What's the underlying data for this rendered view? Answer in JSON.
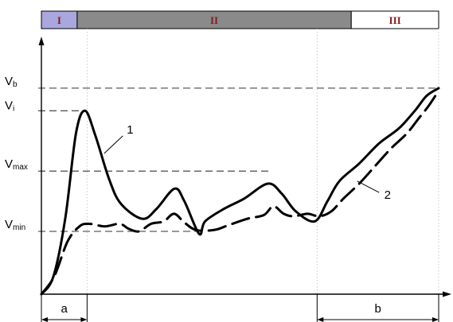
{
  "chart_data": {
    "type": "line",
    "x_range": [
      0,
      100
    ],
    "y_range": [
      0,
      100
    ],
    "y_levels": [
      {
        "id": "vmin",
        "main": "V",
        "sub": "min",
        "value": 25
      },
      {
        "id": "vmax",
        "main": "V",
        "sub": "max",
        "value": 49
      },
      {
        "id": "vi",
        "main": "V",
        "sub": "i",
        "value": 73
      },
      {
        "id": "vb",
        "main": "V",
        "sub": "b",
        "value": 82
      }
    ],
    "stages": [
      {
        "label": "I",
        "start": 0,
        "end": 9,
        "color": "#aaa6de"
      },
      {
        "label": "II",
        "start": 9,
        "end": 78,
        "color": "#8a8a8a"
      },
      {
        "label": "III",
        "start": 78,
        "end": 100,
        "color": "#ffffff"
      }
    ],
    "intervals": [
      {
        "label": "a",
        "start": 0,
        "end": 11.5
      },
      {
        "label": "b",
        "start": 69.4,
        "end": 100
      }
    ],
    "series": [
      {
        "name": "1",
        "style": "solid",
        "points": [
          [
            0,
            0
          ],
          [
            3,
            7
          ],
          [
            6,
            30
          ],
          [
            8.7,
            64
          ],
          [
            11,
            73
          ],
          [
            13.6,
            63
          ],
          [
            17,
            46
          ],
          [
            20,
            36
          ],
          [
            25.4,
            30
          ],
          [
            29,
            34
          ],
          [
            33.5,
            42
          ],
          [
            36,
            37
          ],
          [
            39.7,
            24
          ],
          [
            41.2,
            29
          ],
          [
            46,
            34
          ],
          [
            51,
            38
          ],
          [
            57,
            44
          ],
          [
            60.5,
            40
          ],
          [
            64,
            33
          ],
          [
            68.8,
            29
          ],
          [
            72,
            37
          ],
          [
            75,
            45
          ],
          [
            80,
            52
          ],
          [
            85,
            60
          ],
          [
            90,
            66
          ],
          [
            94,
            73
          ],
          [
            97,
            79
          ],
          [
            100,
            82
          ]
        ]
      },
      {
        "name": "2",
        "style": "dashed",
        "points": [
          [
            0,
            0
          ],
          [
            3.2,
            7
          ],
          [
            6.6,
            21
          ],
          [
            9.6,
            27
          ],
          [
            12,
            28
          ],
          [
            16,
            27
          ],
          [
            19.7,
            28
          ],
          [
            22,
            26
          ],
          [
            24.6,
            25
          ],
          [
            27.6,
            28
          ],
          [
            30.8,
            29
          ],
          [
            33.4,
            32
          ],
          [
            36,
            28.5
          ],
          [
            39,
            25.5
          ],
          [
            43.6,
            25.6
          ],
          [
            47,
            27.4
          ],
          [
            51.8,
            30
          ],
          [
            56,
            31.5
          ],
          [
            58.4,
            35
          ],
          [
            61,
            32
          ],
          [
            63.5,
            31
          ],
          [
            67,
            32
          ],
          [
            70,
            31
          ],
          [
            73,
            33
          ],
          [
            76,
            38
          ],
          [
            80,
            44
          ],
          [
            84,
            51
          ],
          [
            88,
            58
          ],
          [
            92,
            64
          ],
          [
            95,
            70
          ],
          [
            97.5,
            75
          ],
          [
            100,
            81
          ]
        ]
      }
    ],
    "curve_labels": [
      {
        "text": "1",
        "series": "1"
      },
      {
        "text": "2",
        "series": "2"
      }
    ]
  }
}
